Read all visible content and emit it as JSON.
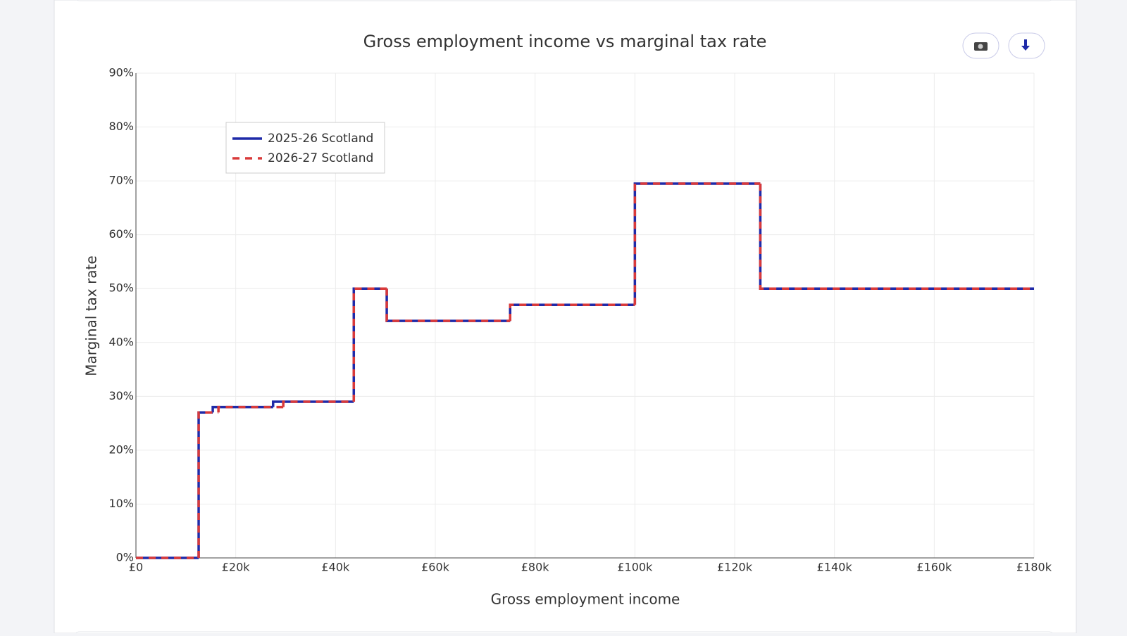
{
  "chart_data": {
    "type": "step-line",
    "title": "Gross employment income vs marginal tax rate",
    "x_label": "Gross employment income",
    "y_label": "Marginal tax rate",
    "xlim": [
      0,
      180000
    ],
    "ylim": [
      0,
      90
    ],
    "grid": true,
    "xticks": [
      {
        "value": 0,
        "label": "£0"
      },
      {
        "value": 20000,
        "label": "£20k"
      },
      {
        "value": 40000,
        "label": "£40k"
      },
      {
        "value": 60000,
        "label": "£60k"
      },
      {
        "value": 80000,
        "label": "£80k"
      },
      {
        "value": 100000,
        "label": "£100k"
      },
      {
        "value": 120000,
        "label": "£120k"
      },
      {
        "value": 140000,
        "label": "£140k"
      },
      {
        "value": 160000,
        "label": "£160k"
      },
      {
        "value": 180000,
        "label": "£180k"
      }
    ],
    "yticks": [
      {
        "value": 0,
        "label": "0%"
      },
      {
        "value": 10,
        "label": "10%"
      },
      {
        "value": 20,
        "label": "20%"
      },
      {
        "value": 30,
        "label": "30%"
      },
      {
        "value": 40,
        "label": "40%"
      },
      {
        "value": 50,
        "label": "50%"
      },
      {
        "value": 60,
        "label": "60%"
      },
      {
        "value": 70,
        "label": "70%"
      },
      {
        "value": 80,
        "label": "80%"
      },
      {
        "value": 90,
        "label": "90%"
      }
    ],
    "series": [
      {
        "name": "2025-26 Scotland",
        "color": "#1f2aa8",
        "dash": false,
        "x": [
          0,
          12570,
          15397,
          27491,
          43662,
          50270,
          75000,
          100000,
          125140,
          180000
        ],
        "values": [
          0,
          27,
          28,
          29,
          50,
          44,
          47,
          69.5,
          50,
          50
        ]
      },
      {
        "name": "2026-27 Scotland",
        "color": "#d93a3a",
        "dash": true,
        "x": [
          0,
          12570,
          16537,
          29527,
          43662,
          50270,
          75000,
          100000,
          125140,
          180000
        ],
        "values": [
          0,
          27,
          28,
          29,
          50,
          44,
          47,
          69.5,
          50,
          50
        ]
      }
    ]
  }
}
